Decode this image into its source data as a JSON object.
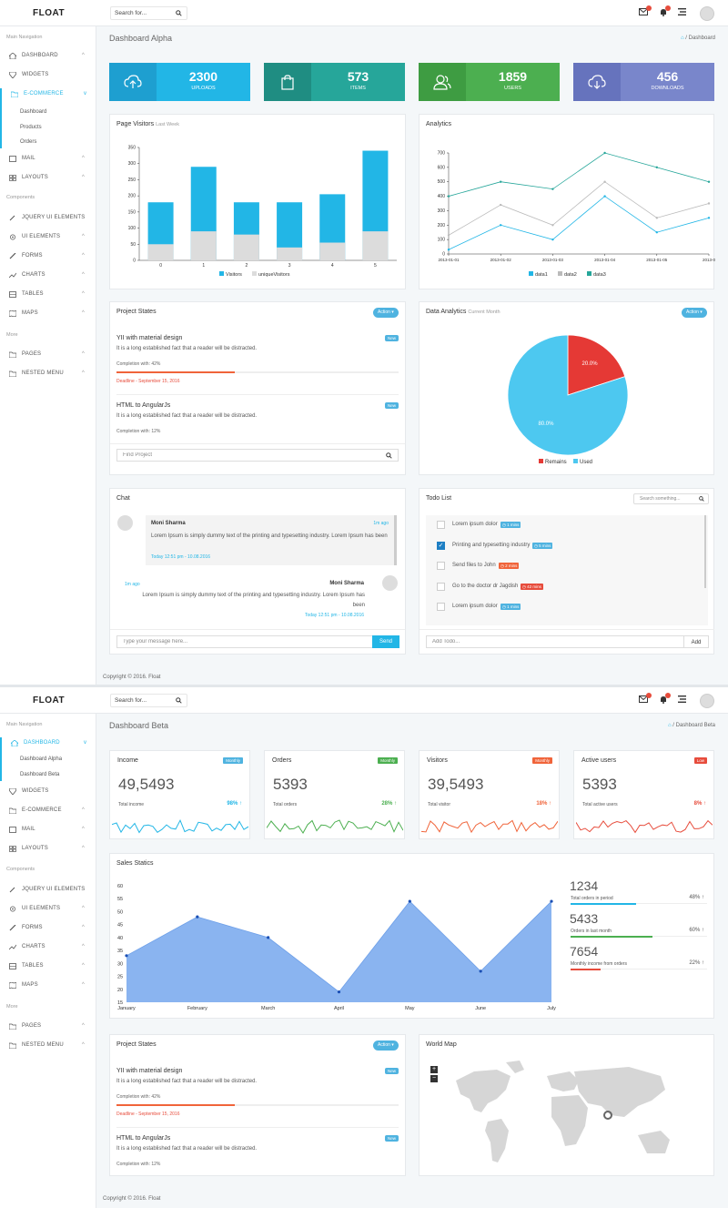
{
  "app": {
    "logo": "FLOAT",
    "search_placeholder": "Search for...",
    "footer": "Copyright © 2016. Float"
  },
  "colors": {
    "primary": "#22b6e6",
    "teal": "#26a69a",
    "green": "#4caf50",
    "purple": "#7986cb",
    "danger": "#e74c3c"
  },
  "sidebar": {
    "main_nav": "Main Navigation",
    "components": "Components",
    "more": "More",
    "items": [
      "DASHBOARD",
      "WIDGETS",
      "E-COMMERCE",
      "MAIL",
      "LAYOUTS",
      "JQUERY UI ELEMENTS",
      "UI ELEMENTS",
      "FORMS",
      "CHARTS",
      "TABLES",
      "MAPS",
      "PAGES",
      "NESTED MENU"
    ],
    "ecommerce_sub": [
      "Dashboard",
      "Products",
      "Orders"
    ],
    "dashboard_sub": [
      "Dashboard Alpha",
      "Dashboard Beta"
    ]
  },
  "dash1": {
    "title": "Dashboard Alpha",
    "breadcrumb": "Dashboard",
    "stats": [
      {
        "value": "2300",
        "label": "UPLOADS",
        "icon": "cloud-upload-icon"
      },
      {
        "value": "573",
        "label": "ITEMS",
        "icon": "shopping-bag-icon"
      },
      {
        "value": "1859",
        "label": "USERS",
        "icon": "users-icon"
      },
      {
        "value": "456",
        "label": "DOWNLOADS",
        "icon": "cloud-download-icon"
      }
    ],
    "visitors_title": "Page Visitors",
    "visitors_sub": "Last Week",
    "analytics_title": "Analytics",
    "project_title": "Project States",
    "action": "Action ▾",
    "projects": [
      {
        "name": "YII with material design",
        "desc": "It is a long established fact that a reader will be distracted.",
        "badge": "New",
        "completion": "Completion with: 42%",
        "progress": 0.42,
        "deadline": "Deadline - September 15, 2016"
      },
      {
        "name": "HTML to AngularJs",
        "desc": "It is a long established fact that a reader will be distracted.",
        "badge": "New",
        "completion": "Completion with: 12%"
      }
    ],
    "find_project": "Find Project",
    "data_analytics_title": "Data Analytics",
    "data_analytics_sub": "Current Month",
    "chat_title": "Chat",
    "chat": [
      {
        "name": "Moni Sharma",
        "time": "1m ago",
        "text": "Lorem Ipsum is simply dummy text of the printing and typesetting industry. Lorem Ipsum has been",
        "date": "Today 12:51 pm - 10.08.2016"
      },
      {
        "name": "Moni Sharma",
        "time": "1m ago",
        "text": "Lorem Ipsum is simply dummy text of the printing and typesetting industry. Lorem Ipsum has been",
        "date": "Today 12:51 pm - 10.08.2016"
      }
    ],
    "chat_placeholder": "Type your message here...",
    "send": "Send",
    "todo_title": "Todo List",
    "todo_search": "Search something...",
    "todos": [
      {
        "text": "Lorem ipsum dolor",
        "tag": "1 mins",
        "color": "#4fb3e0",
        "checked": false
      },
      {
        "text": "Printing and typesetting industry",
        "tag": "5 mins",
        "color": "#4fb3e0",
        "checked": true
      },
      {
        "text": "Send files to John",
        "tag": "2 mins",
        "color": "#f0643a",
        "checked": false
      },
      {
        "text": "Go to the doctor dr Jagdish",
        "tag": "42 mins",
        "color": "#e74c3c",
        "checked": false
      },
      {
        "text": "Lorem ipsum dolor",
        "tag": "1 mins",
        "color": "#4fb3e0",
        "checked": false
      }
    ],
    "add_placeholder": "Add Todo...",
    "add_btn": "Add"
  },
  "dash2": {
    "title": "Dashboard Beta",
    "breadcrumb": "Dashboard Beta",
    "kpis": [
      {
        "title": "Income",
        "badge": "Monthly",
        "badge_color": "#4fb3e0",
        "value": "49,5493",
        "label": "Total income",
        "pct": "98%",
        "pct_color": "#22b6e6",
        "line_color": "#22b6e6"
      },
      {
        "title": "Orders",
        "badge": "Monthly",
        "badge_color": "#4caf50",
        "value": "5393",
        "label": "Total orders",
        "pct": "28%",
        "pct_color": "#4caf50",
        "line_color": "#4caf50"
      },
      {
        "title": "Visitors",
        "badge": "Monthly",
        "badge_color": "#f0643a",
        "value": "39,5493",
        "label": "Total visitor",
        "pct": "18%",
        "pct_color": "#f0643a",
        "line_color": "#f0643a"
      },
      {
        "title": "Active users",
        "badge": "Low",
        "badge_color": "#e74c3c",
        "value": "5393",
        "label": "Total active users",
        "pct": "8%",
        "pct_color": "#e74c3c",
        "line_color": "#e74c3c"
      }
    ],
    "sales_title": "Sales Statics",
    "sales_stats": [
      {
        "value": "1234",
        "label": "Total orders in period",
        "pct": "48%",
        "color": "#22b6e6",
        "progress": 0.48
      },
      {
        "value": "5433",
        "label": "Orders in last month",
        "pct": "60%",
        "color": "#4caf50",
        "progress": 0.6
      },
      {
        "value": "7654",
        "label": "Monthly income from orders",
        "pct": "22%",
        "color": "#e74c3c",
        "progress": 0.22
      }
    ],
    "project_title": "Project States",
    "action": "Action ▾",
    "projects": [
      {
        "name": "YII with material design",
        "desc": "It is a long established fact that a reader will be distracted.",
        "badge": "New",
        "completion": "Completion with: 42%",
        "progress": 0.42,
        "deadline": "Deadline - September 15, 2016"
      },
      {
        "name": "HTML to AngularJs",
        "desc": "It is a long established fact that a reader will be distracted.",
        "badge": "New",
        "completion": "Completion with: 12%"
      }
    ],
    "map_title": "World Map",
    "zoom_in": "+",
    "zoom_out": "−"
  },
  "chart_data": [
    {
      "type": "bar",
      "title": "Page Visitors",
      "categories": [
        "0",
        "1",
        "2",
        "3",
        "4",
        "5"
      ],
      "series": [
        {
          "name": "Visitors",
          "values": [
            180,
            290,
            180,
            180,
            205,
            340
          ]
        },
        {
          "name": "uniqueVisitors",
          "values": [
            50,
            90,
            80,
            40,
            55,
            90
          ]
        }
      ],
      "ylim": [
        0,
        350
      ],
      "yticks": [
        0,
        50,
        100,
        150,
        200,
        250,
        300,
        350
      ],
      "legend": "bottom"
    },
    {
      "type": "line",
      "title": "Analytics",
      "x": [
        "2013-01-01",
        "2013-01-02",
        "2013-01-03",
        "2013-01-04",
        "2013-01-05",
        "2013-01-06"
      ],
      "x_tick_labels": [
        "2013-01-01",
        "2013-01-02",
        "2013-01-03",
        "2013-01-04",
        "2013-01-05",
        "2013-0"
      ],
      "series": [
        {
          "name": "data1",
          "values": [
            30,
            200,
            100,
            400,
            150,
            250
          ],
          "color": "#22b6e6"
        },
        {
          "name": "data2",
          "values": [
            130,
            340,
            200,
            500,
            250,
            350
          ],
          "color": "#bbbbbb"
        },
        {
          "name": "data3",
          "values": [
            400,
            500,
            450,
            700,
            600,
            500
          ],
          "color": "#26a69a"
        }
      ],
      "ylim": [
        0,
        700
      ],
      "yticks": [
        0,
        100,
        200,
        300,
        400,
        500,
        600,
        700
      ],
      "legend": "bottom"
    },
    {
      "type": "pie",
      "title": "Data Analytics",
      "series": [
        {
          "name": "Remains",
          "value": 20,
          "label": "20.0%",
          "color": "#e53935"
        },
        {
          "name": "Used",
          "value": 80,
          "label": "80.0%",
          "color": "#4dc8f0"
        }
      ],
      "legend": "bottom"
    },
    {
      "type": "area",
      "title": "Sales Statics",
      "categories": [
        "January",
        "February",
        "March",
        "April",
        "May",
        "June",
        "July"
      ],
      "values": [
        33,
        48,
        40,
        19,
        54,
        27,
        54
      ],
      "ylim": [
        15,
        60
      ],
      "yticks": [
        15,
        20,
        25,
        30,
        35,
        40,
        45,
        50,
        55,
        60
      ]
    }
  ]
}
